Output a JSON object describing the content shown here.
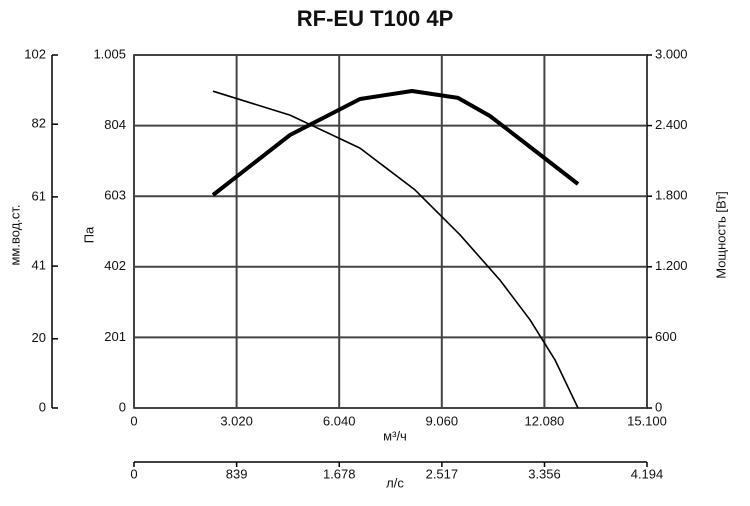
{
  "chart_data": {
    "type": "line",
    "title": "RF-EU T100 4P",
    "x_label": "м³/ч",
    "y_label": "Па",
    "y2_label": "Мощность [Вт]",
    "y3_label": "мм.вод.ст.",
    "x2_label": "л/с",
    "xlim": [
      0,
      15100
    ],
    "xticks": [
      0,
      {
        "value": 3020,
        "label": "3.020"
      },
      {
        "value": 6040,
        "label": "6.040"
      },
      {
        "value": 9060,
        "label": "9.060"
      },
      {
        "value": 12080,
        "label": "12.080"
      },
      {
        "value": 15100,
        "label": "15.100"
      }
    ],
    "ylim": [
      0,
      1005
    ],
    "yticks": [
      0,
      201,
      402,
      603,
      804,
      {
        "value": 1005,
        "label": "1.005"
      }
    ],
    "y2lim": [
      0,
      3000
    ],
    "y2ticks": [
      0,
      600,
      {
        "value": 1200,
        "label": "1.200"
      },
      {
        "value": 1800,
        "label": "1.800"
      },
      {
        "value": 2400,
        "label": "2.400"
      },
      {
        "value": 3000,
        "label": "3.000"
      }
    ],
    "y3lim": [
      0,
      102
    ],
    "y3ticks": [
      0,
      20,
      41,
      61,
      82,
      102
    ],
    "x2lim": [
      0,
      4194
    ],
    "x2ticks": [
      0,
      839,
      {
        "value": 1678,
        "label": "1.678"
      },
      {
        "value": 2517,
        "label": "2.517"
      },
      {
        "value": 3356,
        "label": "3.356"
      },
      {
        "value": 4194,
        "label": "4.194"
      }
    ],
    "grid": true,
    "series": [
      {
        "x": [
          2325,
          4592,
          6652,
          8271,
          9596,
          10774,
          11657,
          12393,
          13070
        ],
        "values": [
          902,
          834,
          740,
          621,
          493,
          364,
          251,
          137,
          0
        ],
        "color": "#000000",
        "axis": "y"
      },
      {
        "x": [
          2325,
          4592,
          6652,
          8183,
          9537,
          10479,
          11510,
          13070
        ],
        "values": [
          1810,
          2320,
          2626,
          2694,
          2635,
          2482,
          2252,
          1904
        ],
        "color": "#000000",
        "axis": "y2"
      }
    ]
  }
}
